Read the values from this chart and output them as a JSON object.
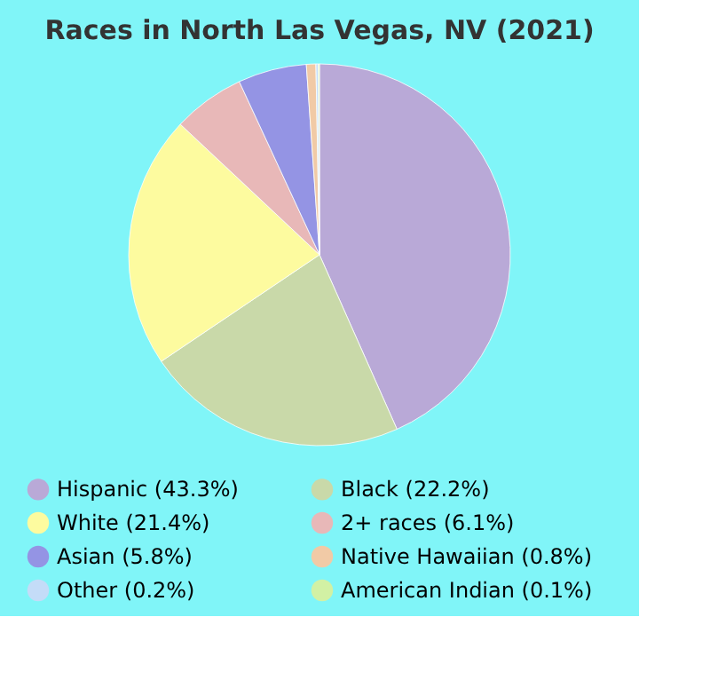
{
  "chart_data": {
    "type": "pie",
    "title": "Races in North Las Vegas, NV (2021)",
    "categories": [
      "Hispanic (43.3%)",
      "Black (22.2%)",
      "White (21.4%)",
      "2+ races (6.1%)",
      "Asian (5.8%)",
      "Native Hawaiian (0.8%)",
      "Other (0.2%)",
      "American Indian (0.1%)"
    ],
    "values": [
      43.3,
      22.2,
      21.4,
      6.1,
      5.8,
      0.8,
      0.2,
      0.1
    ],
    "colors": [
      "#b9a9d7",
      "#c9d9a9",
      "#fdfb9f",
      "#e8b8b8",
      "#9494e4",
      "#f1caa6",
      "#c4dcf8",
      "#d2f1a4"
    ],
    "legend": "bottom"
  }
}
